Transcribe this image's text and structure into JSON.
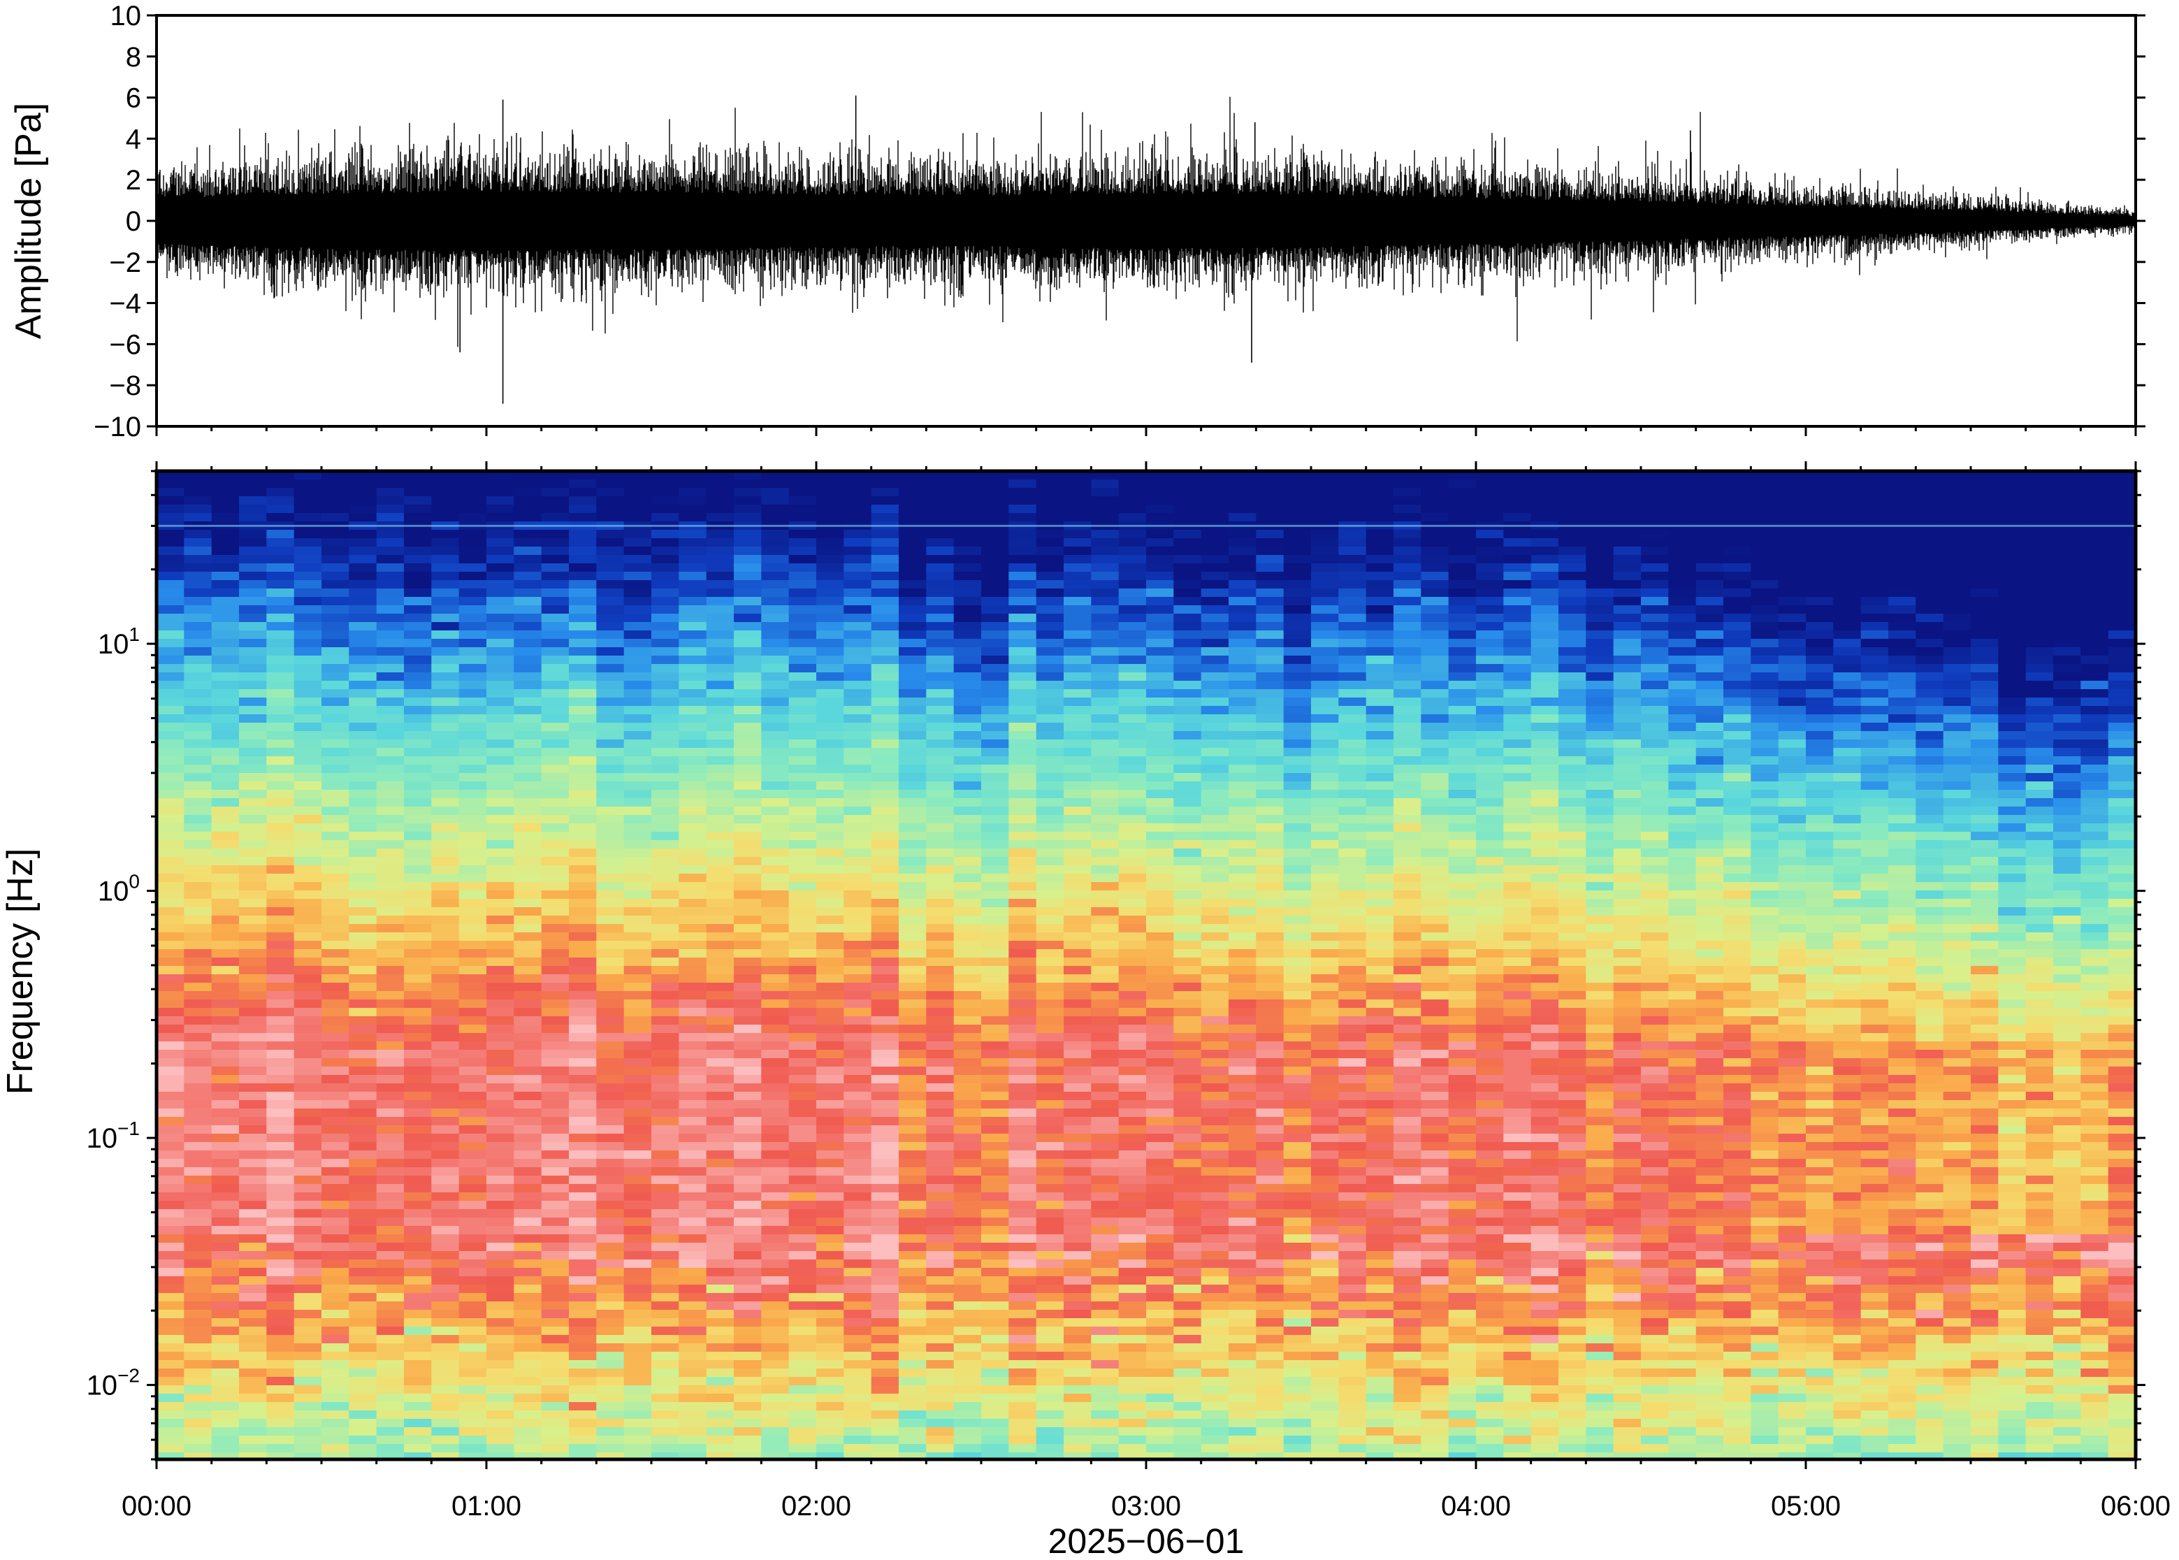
{
  "chart_data": [
    {
      "type": "line",
      "ylabel": "Amplitude [Pa]",
      "ylim": [
        -10,
        10
      ],
      "yticks": [
        -10,
        -8,
        -6,
        -4,
        -2,
        0,
        2,
        4,
        6,
        8,
        10
      ],
      "ytick_labels": [
        "−10",
        "−8",
        "−6",
        "−4",
        "−2",
        "0",
        "2",
        "4",
        "6",
        "8",
        "10"
      ],
      "x_range": [
        "00:00",
        "06:00"
      ],
      "envelope": {
        "x_hours": [
          0,
          0.5,
          1,
          1.5,
          2,
          2.5,
          3,
          3.5,
          4,
          4.5,
          5,
          5.5,
          6
        ],
        "half_amplitude": [
          2.0,
          2.4,
          2.6,
          2.5,
          2.3,
          2.2,
          2.4,
          2.3,
          2.0,
          1.7,
          1.3,
          0.9,
          0.4
        ]
      },
      "notable_peaks": [
        {
          "x_hours": 1.05,
          "y": -8.9
        },
        {
          "x_hours": 1.05,
          "y": 5.9
        },
        {
          "x_hours": 2.12,
          "y": 6.1
        },
        {
          "x_hours": 3.32,
          "y": -6.9
        },
        {
          "x_hours": 3.33,
          "y": 4.8
        },
        {
          "x_hours": 0.92,
          "y": -6.4
        },
        {
          "x_hours": 4.65,
          "y": 4.4
        }
      ],
      "grid": false
    },
    {
      "type": "heatmap",
      "ylabel": "Frequency [Hz]",
      "yscale": "log",
      "ylim": [
        0.005,
        50
      ],
      "ytick_labels": [
        {
          "value": 0.01,
          "base": "10",
          "exp": "−2"
        },
        {
          "value": 0.1,
          "base": "10",
          "exp": "−1"
        },
        {
          "value": 1,
          "base": "10",
          "exp": "0"
        },
        {
          "value": 10,
          "base": "10",
          "exp": "1"
        }
      ],
      "xticks": [
        0,
        1,
        2,
        3,
        4,
        5,
        6
      ],
      "xtick_labels": [
        "00:00",
        "01:00",
        "02:00",
        "03:00",
        "04:00",
        "05:00",
        "06:00"
      ],
      "xlabel": "2025−06−01",
      "colormap": "rainbow",
      "colors": {
        "high": "#fcb4b4",
        "low": "#0a1a8c"
      },
      "grid": false
    }
  ]
}
